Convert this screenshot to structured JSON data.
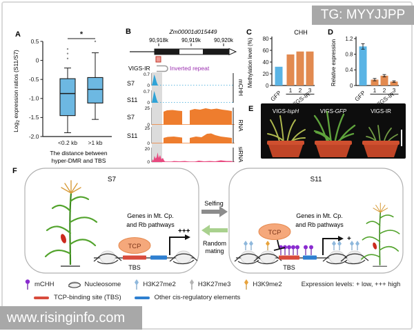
{
  "figure": {
    "watermark_top": "TG: MYYJJPP",
    "watermark_bottom": "www.risinginfo.com"
  },
  "panelA": {
    "label": "A",
    "ylabel_pre": "Log",
    "ylabel_sub": "2",
    "ylabel_rest": " expression ratios (S11/S7)",
    "xlabel_line1": "The distance between",
    "xlabel_line2": "hyper-DMR and TBS"
  },
  "chart_data": [
    {
      "id": "A",
      "type": "box",
      "ylabel": "Log2 expression ratios (S11/S7)",
      "xlabel": "The distance between hyper-DMR and TBS",
      "categories": [
        "<0.2 kb",
        ">1 kb"
      ],
      "ylim": [
        -2.0,
        0.5
      ],
      "yticks": [
        {
          "v": 0.5,
          "label": "0.5"
        },
        {
          "v": 0,
          "label": "0"
        },
        {
          "v": -0.5,
          "label": "-0.5"
        },
        {
          "v": -1.0,
          "label": "-1.0"
        },
        {
          "v": -1.5,
          "label": "-1.5"
        },
        {
          "v": -2.0,
          "label": "-2.0"
        }
      ],
      "boxes": [
        {
          "whisker_low": -1.9,
          "q1": -1.45,
          "median": -0.87,
          "q3": -0.48,
          "whisker_high": -0.2,
          "outliers": [
            0.05,
            0.18,
            0.3
          ]
        },
        {
          "whisker_low": -1.55,
          "q1": -1.12,
          "median": -0.76,
          "q3": -0.45,
          "whisker_high": 0.2,
          "outliers": [
            0.5
          ]
        }
      ],
      "significance": "*",
      "box_fill": "#6db8e2"
    },
    {
      "id": "C",
      "type": "bar",
      "title": "CHH",
      "ylabel": "Methylation level (%)",
      "categories": [
        "GFP",
        "1",
        "2",
        "3"
      ],
      "values": [
        32,
        53,
        58,
        58
      ],
      "errors": [
        0,
        0,
        0,
        0
      ],
      "bar_colors": [
        "#5ab4e5",
        "#e28a50",
        "#e28a50",
        "#e28a50"
      ],
      "ylim": [
        0,
        80
      ],
      "yticks": [
        {
          "v": 0,
          "label": "0"
        },
        {
          "v": 20,
          "label": "20"
        },
        {
          "v": 40,
          "label": "40"
        },
        {
          "v": 60,
          "label": "60"
        },
        {
          "v": 80,
          "label": "80"
        }
      ],
      "group_label": "VIGS-IR"
    },
    {
      "id": "D",
      "type": "bar",
      "title": "",
      "ylabel": "Relative expression",
      "categories": [
        "GFP",
        "1",
        "2",
        "3"
      ],
      "values": [
        1.0,
        0.15,
        0.25,
        0.1
      ],
      "errors": [
        0.07,
        0.03,
        0.03,
        0.02
      ],
      "bar_colors": [
        "#5ab4e5",
        "#e28a50",
        "#e28a50",
        "#e28a50"
      ],
      "ylim": [
        0,
        1.2
      ],
      "yticks": [
        {
          "v": 0,
          "label": "0"
        },
        {
          "v": 0.4,
          "label": "0.4"
        },
        {
          "v": 0.8,
          "label": "0.8"
        },
        {
          "v": 1.2,
          "label": "1.2"
        }
      ],
      "group_label": "VIGS-IR"
    }
  ],
  "panelB": {
    "label": "B",
    "gene_name": "Zm00001d015449",
    "coords": [
      "90,918k",
      "90,919k",
      "90,920k"
    ],
    "vigs_ir": "VIGS-IR",
    "inverted_repeat": "Inverted repeat",
    "tracks": [
      {
        "name": "S7",
        "max": "0.7",
        "min": "0",
        "group": "mCHH"
      },
      {
        "name": "S11",
        "max": "0.7",
        "min": "0",
        "group": "mCHH"
      },
      {
        "name": "S7",
        "max": "25",
        "min": "0",
        "group": "RNA"
      },
      {
        "name": "S11",
        "max": "25",
        "min": "0",
        "group": "RNA"
      },
      {
        "name": "",
        "max": "20",
        "min": "0",
        "group": "siRNA"
      }
    ],
    "groups": [
      "mCHH",
      "RNA",
      "siRNA"
    ]
  },
  "panelC": {
    "label": "C"
  },
  "panelD": {
    "label": "D"
  },
  "panelE": {
    "label": "E",
    "pots": [
      {
        "prefix": "VIGS-",
        "gene": "IspH"
      },
      {
        "prefix": "VIGS-",
        "gene": "GFP"
      },
      {
        "prefix": "VIGS-IR",
        "gene": ""
      }
    ]
  },
  "panelF": {
    "label": "F",
    "s7": {
      "title": "S7",
      "genes_line1": "Genes in Mt. Cp.",
      "genes_line2": "and Rb pathways",
      "tf": "TCP",
      "tbs": "TBS",
      "expression": "+++"
    },
    "s11": {
      "title": "S11",
      "genes_line1": "Genes in Mt. Cp.",
      "genes_line2": "and Rb pathways",
      "tf": "TCP",
      "tbs": "TBS",
      "expression": "+"
    },
    "selfing": "Selfing",
    "random_line1": "Random",
    "random_line2": "mating"
  },
  "legend": {
    "row1": [
      {
        "icon": "mchh-lollipop-icon",
        "label": "mCHH"
      },
      {
        "icon": "nucleosome-icon",
        "label": "Nucleosome"
      },
      {
        "icon": "h3k27me2-icon",
        "label": "H3K27me2"
      },
      {
        "icon": "h3k27me3-icon",
        "label": "H3K27me3"
      },
      {
        "icon": "h3k9me2-icon",
        "label": "H3K9me2"
      }
    ],
    "expression_note": "Expression levels: + low, +++ high",
    "row2": [
      {
        "icon": "tbs-bar-icon",
        "label": "TCP-binding site (TBS)"
      },
      {
        "icon": "cis-bar-icon",
        "label": "Other cis-regulatory elements"
      }
    ]
  },
  "colors": {
    "box_fill": "#6db8e2",
    "mchh_track": "#2fa3d7",
    "rna_track": "#ee7d2e",
    "sirna_track": "#e8497f",
    "bar_blue": "#5ab4e5",
    "bar_orange": "#e28a50",
    "tcp_fill": "#f5a87b",
    "tbs_red": "#d84b3c",
    "cis_blue": "#2e7fd0",
    "mchh_purple": "#8a2bd0",
    "h3k27me2": "#8fb8dc",
    "h3k27me3": "#b3b3b3",
    "h3k9me2": "#e8a33c",
    "selfing_arrow": "#8c8c8c",
    "mating_arrow": "#a9d18e",
    "watermark_bg": "#a8a8a8"
  }
}
